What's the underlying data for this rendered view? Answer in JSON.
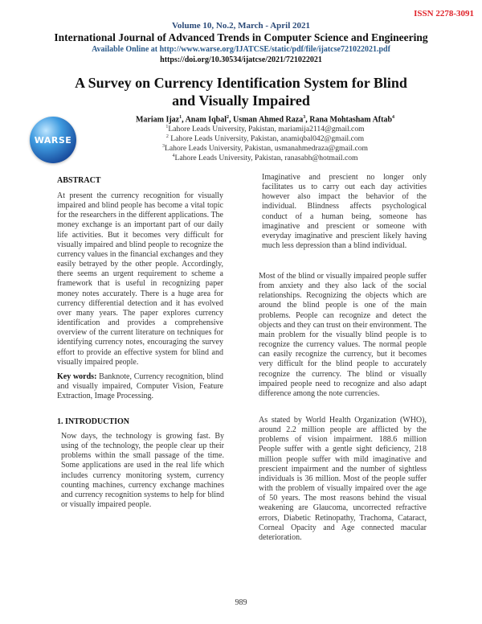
{
  "header": {
    "issn": "ISSN 2278-3091",
    "volume": "Volume 10, No.2, March - April 2021",
    "journal": "International Journal of Advanced Trends in Computer Science and Engineering",
    "available_online": "Available Online at http://www.warse.org/IJATCSE/static/pdf/file/ijatcse721022021.pdf",
    "doi": "https://doi.org/10.30534/ijatcse/2021/721022021",
    "logo_text": "WARSE"
  },
  "paper": {
    "title": "A Survey on Currency Identification System for Blind and Visually Impaired",
    "authors": [
      {
        "name": "Mariam Ijaz",
        "sup": "1"
      },
      {
        "name": "Anam Iqbal",
        "sup": "2"
      },
      {
        "name": "Usman Ahmed Raza",
        "sup": "3"
      },
      {
        "name": "Rana Mohtasham Aftab",
        "sup": "4"
      }
    ],
    "affiliations": [
      {
        "sup": "1",
        "text": "Lahore Leads University, Pakistan, mariamija2114@gmail.com"
      },
      {
        "sup": "2",
        "text": "Lahore Leads University, Pakistan, anamiqbal042@gmail.com"
      },
      {
        "sup": "3",
        "text": "Lahore Leads University, Pakistan, usmanahmedraza@gmail.com"
      },
      {
        "sup": "4",
        "text": "Lahore Leads University, Pakistan, ranasabh@hotmail.com"
      }
    ]
  },
  "abstract": {
    "heading": "ABSTRACT",
    "text": "At present the currency recognition for visually impaired and blind people has become a vital topic for the researchers in the different applications. The money exchange is an important part of our daily life activities. But it becomes very difficult for visually impaired and blind people to recognize the currency values in the financial exchanges and they easily betrayed by the other people. Accordingly, there seems an urgent requirement to scheme a framework that is useful in recognizing paper money notes accurately. There is a huge area for currency differential detection and it has evolved over many years. The paper explores currency identification and provides a comprehensive overview of the current literature on techniques for identifying currency notes, encouraging the survey effort to provide an effective system for blind and visually impaired people.",
    "keywords_label": "Key words:",
    "keywords": "Banknote, Currency recognition, blind and visually impaired, Computer Vision, Feature Extraction, Image Processing."
  },
  "introduction": {
    "heading": "1. INTRODUCTION",
    "p1": "Now days, the technology is growing fast. By using of the technology, the people clear up their problems within the small passage of the time. Some applications are used in the real life which includes currency monitoring system, currency counting machines, currency exchange machines and currency recognition systems to help for blind or visually impaired people."
  },
  "right_column": {
    "p1": "Imaginative and prescient no longer only facilitates us to carry out each day activities however also impact the behavior of the individual. Blindness affects psychological conduct of a human being, someone has imaginative and prescient or someone with everyday imaginative and prescient likely having much less depression than a blind individual.",
    "p2": "Most of the blind or visually impaired people suffer from anxiety and they also lack of the social relationships. Recognizing the objects which are around the blind people is one of the main problems. People can recognize and detect the objects and they can trust on their environment. The main problem for the visually blind people is to recognize the currency values. The normal people can easily recognize the currency, but it becomes very difficult for the blind people to accurately recognize the currency. The blind or visually impaired people need to recognize and also adapt difference among the note currencies.",
    "p3": "As stated by World Health Organization (WHO), around 2.2 million people are afflicted by the problems of vision impairment. 188.6 million People suffer with a gentle sight deficiency, 218 million people suffer with mild imaginative and prescient impairment and the number of sightless individuals is 36 million. Most of the people suffer with the problem of visually impaired over the age of 50 years. The most reasons behind the visual weakening are Glaucoma, uncorrected refractive errors, Diabetic Retinopathy, Trachoma, Cataract, Corneal Opacity and Age connected macular deterioration."
  },
  "footer": {
    "page_number": "989"
  },
  "colors": {
    "issn": "#e0232a",
    "volume": "#2b4a78",
    "link": "#2b5a8a"
  }
}
